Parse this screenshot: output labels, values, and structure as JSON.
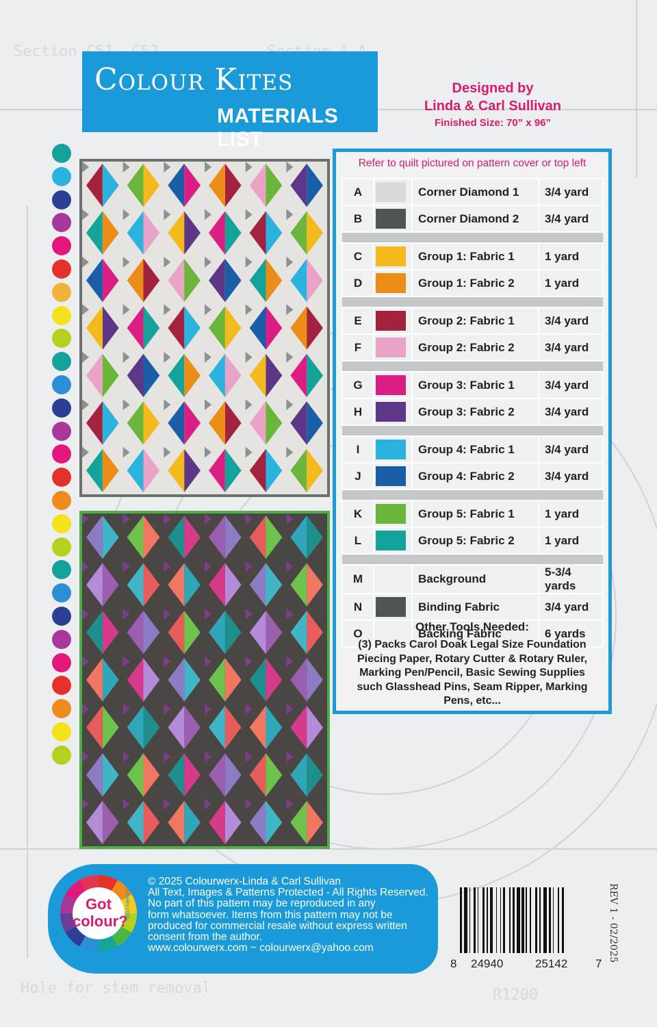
{
  "header": {
    "logo_text": "Colour Kites",
    "subtitle": "MATERIALS LIST",
    "designed_by": "Designed by",
    "designers": "Linda & Carl Sullivan",
    "finished_size": "Finished Size: 70” x 96”"
  },
  "materials": {
    "refer_note": "Refer to quilt pictured on pattern cover or top left",
    "rows": [
      {
        "letter": "A",
        "color": "#d9d9d9",
        "name": "Corner Diamond 1",
        "qty": "3/4 yard"
      },
      {
        "letter": "B",
        "color": "#4f5455",
        "name": "Corner Diamond 2",
        "qty": "3/4 yard"
      },
      {
        "sep": true
      },
      {
        "letter": "C",
        "color": "#f4b91a",
        "name": "Group 1: Fabric 1",
        "qty": "1 yard"
      },
      {
        "letter": "D",
        "color": "#ec8d17",
        "name": "Group 1: Fabric 2",
        "qty": "1 yard"
      },
      {
        "sep": true
      },
      {
        "letter": "E",
        "color": "#a3233f",
        "name": "Group 2: Fabric 1",
        "qty": "3/4 yard"
      },
      {
        "letter": "F",
        "color": "#e8a3c6",
        "name": "Group 2: Fabric 2",
        "qty": "3/4 yard"
      },
      {
        "sep": true
      },
      {
        "letter": "G",
        "color": "#dc1e84",
        "name": "Group 3: Fabric 1",
        "qty": "3/4 yard"
      },
      {
        "letter": "H",
        "color": "#5e3687",
        "name": "Group 3: Fabric 2",
        "qty": "3/4 yard"
      },
      {
        "sep": true
      },
      {
        "letter": "I",
        "color": "#2ab3de",
        "name": "Group 4: Fabric 1",
        "qty": "3/4 yard"
      },
      {
        "letter": "J",
        "color": "#1a5ea8",
        "name": "Group 4: Fabric 2",
        "qty": "3/4 yard"
      },
      {
        "sep": true
      },
      {
        "letter": "K",
        "color": "#6ab63a",
        "name": "Group 5: Fabric 1",
        "qty": "1 yard"
      },
      {
        "letter": "L",
        "color": "#14a39a",
        "name": "Group 5: Fabric 2",
        "qty": "1 yard"
      },
      {
        "sep": true
      },
      {
        "letter": "M",
        "color": "#eef0f2",
        "name": "Background",
        "qty": "5-3/4 yards"
      },
      {
        "letter": "N",
        "color": "#4f5455",
        "name": "Binding Fabric",
        "qty": "3/4 yard"
      },
      {
        "letter": "O",
        "color": "#eef0f2",
        "name": "Backing Fabric",
        "qty": "6 yards"
      }
    ],
    "tools_heading": "Other Tools Needed:",
    "tools_text": "(3) Packs Carol Doak Legal Size Foundation Piecing Paper, Rotary Cutter & Rotary Ruler, Marking Pen/Pencil,  Basic Sewing Supplies such Glasshead Pins, Seam Ripper, Marking Pens, etc..."
  },
  "dot_colors": [
    "#14a39a",
    "#2ab3de",
    "#2a3f95",
    "#a6389a",
    "#e1177c",
    "#e4322b",
    "#f0b43a",
    "#f3e21c",
    "#b7cf1e",
    "#14a39a",
    "#2a8fd4",
    "#2a3f95",
    "#a6389a",
    "#e1177c",
    "#e4322b",
    "#f08a1c",
    "#f3e21c",
    "#b7cf1e",
    "#14a39a",
    "#2a8fd4",
    "#2a3f95",
    "#a6389a",
    "#e1177c",
    "#e4322b",
    "#f08a1c",
    "#f3e21c",
    "#b7cf1e"
  ],
  "footer": {
    "got_line1": "Got",
    "got_line2": "colour?",
    "wheel_url": "colourwerx.com",
    "copyright": "© 2025 Colourwerx-Linda & Carl Sullivan",
    "line2": "All Text, Images & Patterns Protected - All Rights Reserved.",
    "line3": "No part of this pattern may be reproduced  in any",
    "line4": "form whatsoever.   Items from this pattern may not be",
    "line5": "produced for commercial resale without express written",
    "line6": "consent from the author.",
    "line7": "www.colourwerx.com ~ colourwerx@yahoo.com"
  },
  "barcode": {
    "d1": "8",
    "d2": "24940",
    "d3": "25142",
    "d4": "7"
  },
  "revision": "REV 1 - 02/2025"
}
